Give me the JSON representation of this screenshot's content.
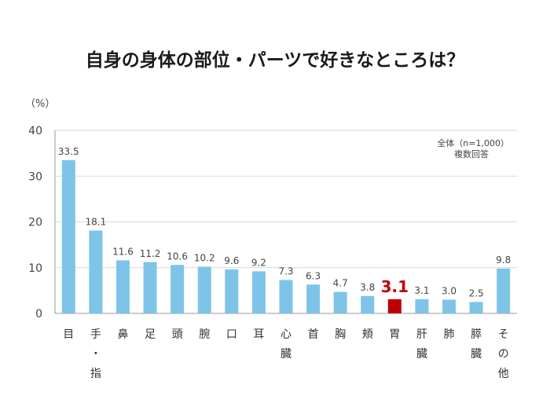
{
  "chart_data": {
    "type": "bar",
    "title": "自身の身体の部位・パーツで好きなところは？",
    "ylabel": "（%）",
    "ylim": [
      0,
      40
    ],
    "yticks": [
      0,
      10,
      20,
      30,
      40
    ],
    "note_lines": [
      "全体（n=1,000）",
      "複数回答"
    ],
    "categories": [
      [
        "目"
      ],
      [
        "手",
        "・",
        "指"
      ],
      [
        "鼻"
      ],
      [
        "足"
      ],
      [
        "頭"
      ],
      [
        "腕"
      ],
      [
        "口"
      ],
      [
        "耳"
      ],
      [
        "心",
        "臓"
      ],
      [
        "首"
      ],
      [
        "胸"
      ],
      [
        "頬"
      ],
      [
        "胃"
      ],
      [
        "肝",
        "臓"
      ],
      [
        "肺"
      ],
      [
        "膵",
        "臓"
      ],
      [
        "そ",
        "の",
        "他"
      ]
    ],
    "value_labels": [
      "33.5",
      "18.1",
      "11.6",
      "11.2",
      "10.6",
      "10.2",
      "9.6",
      "9.2",
      "7.3",
      "6.3",
      "4.7",
      "3.8",
      "3.1",
      "3.1",
      "3.0",
      "2.5",
      "9.8"
    ],
    "values": [
      33.5,
      18.1,
      11.6,
      11.2,
      10.6,
      10.2,
      9.6,
      9.2,
      7.3,
      6.3,
      4.7,
      3.8,
      3.1,
      3.1,
      3.0,
      2.5,
      9.8
    ],
    "highlight_index": 12,
    "colors": {
      "bar": "#7ec4e8",
      "highlight": "#c00000",
      "axis": "#999999",
      "grid": "#d9d9d9"
    },
    "grid": true,
    "legend": "none"
  }
}
